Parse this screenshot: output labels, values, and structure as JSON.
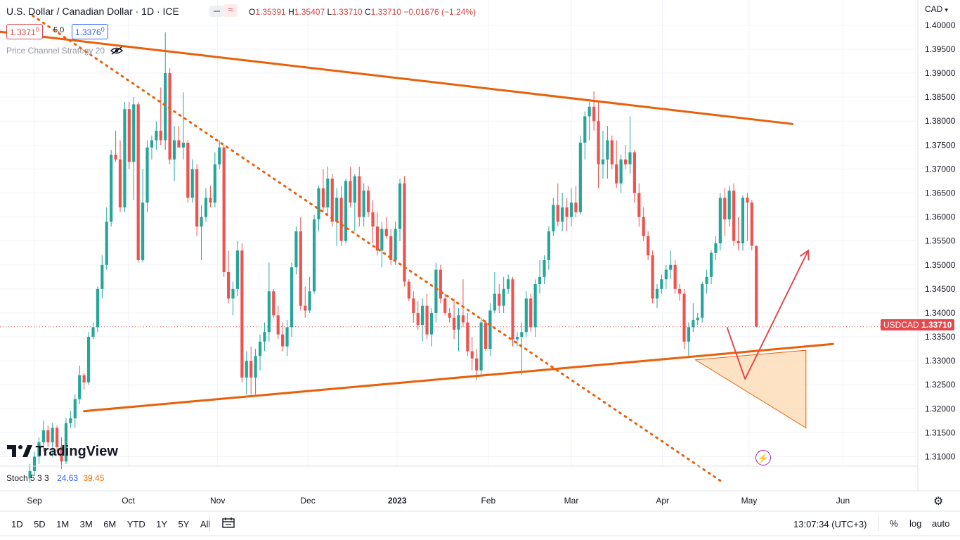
{
  "header": {
    "symbol": "U.S. Dollar / Canadian Dollar · 1D · ICE",
    "ohlc": {
      "open_label": "O",
      "open": "1.35391",
      "high_label": "H",
      "high": "1.35407",
      "low_label": "L",
      "low": "1.33710",
      "close_label": "C",
      "close": "1.33710",
      "change": "−0.01676 (−1.24%)"
    },
    "bid": "1.3371",
    "bid_small": "0",
    "spread": "5.0",
    "ask": "1.3376",
    "ask_small": "0",
    "indicator": "Price Channel Strategy 20",
    "currency": "CAD"
  },
  "price_tag": {
    "symbol": "USDCAD",
    "value": "1.33710"
  },
  "watermark": "TradingView",
  "stoch": {
    "label": "Stoch 5 3 3",
    "k": "24.63",
    "d": "39.45"
  },
  "time_axis": [
    "Sep",
    "Oct",
    "Nov",
    "Dec",
    "2023",
    "Feb",
    "Mar",
    "Apr",
    "May",
    "Jun"
  ],
  "timeframes": [
    "1D",
    "5D",
    "1M",
    "3M",
    "6M",
    "YTD",
    "1Y",
    "5Y",
    "All"
  ],
  "clock": "13:07:34 (UTC+3)",
  "bottom_right": {
    "percent": "%",
    "log": "log",
    "auto": "auto"
  },
  "colors": {
    "up": "#26a69a",
    "down": "#ef5350",
    "trend": "#e8600a",
    "arrow": "#e5484d",
    "fill": "#fcd9b0"
  },
  "chart_data": {
    "type": "candlestick",
    "y_ticks": [
      "1.40000",
      "1.39500",
      "1.39000",
      "1.38500",
      "1.38000",
      "1.37500",
      "1.37000",
      "1.36500",
      "1.36000",
      "1.35500",
      "1.35000",
      "1.34500",
      "1.34000",
      "1.33500",
      "1.33000",
      "1.32500",
      "1.32000",
      "1.31500",
      "1.31000"
    ],
    "ylim": [
      1.3045,
      1.4035
    ],
    "last_price": 1.3371,
    "candles": [
      [
        1.3055,
        1.3085,
        1.3045,
        1.307
      ],
      [
        1.307,
        1.311,
        1.306,
        1.31
      ],
      [
        1.31,
        1.314,
        1.3085,
        1.313
      ],
      [
        1.313,
        1.3175,
        1.311,
        1.3155
      ],
      [
        1.3155,
        1.3165,
        1.312,
        1.313
      ],
      [
        1.313,
        1.317,
        1.31,
        1.316
      ],
      [
        1.316,
        1.3165,
        1.311,
        1.312
      ],
      [
        1.312,
        1.314,
        1.3075,
        1.309
      ],
      [
        1.309,
        1.318,
        1.3085,
        1.317
      ],
      [
        1.317,
        1.3195,
        1.316,
        1.318
      ],
      [
        1.318,
        1.323,
        1.316,
        1.322
      ],
      [
        1.322,
        1.329,
        1.321,
        1.327
      ],
      [
        1.327,
        1.3275,
        1.324,
        1.3255
      ],
      [
        1.3255,
        1.336,
        1.325,
        1.335
      ],
      [
        1.335,
        1.338,
        1.3345,
        1.337
      ],
      [
        1.337,
        1.3455,
        1.336,
        1.345
      ],
      [
        1.345,
        1.352,
        1.343,
        1.35
      ],
      [
        1.35,
        1.362,
        1.349,
        1.359
      ],
      [
        1.359,
        1.374,
        1.358,
        1.373
      ],
      [
        1.373,
        1.378,
        1.3715,
        1.372
      ],
      [
        1.372,
        1.376,
        1.361,
        1.362
      ],
      [
        1.362,
        1.384,
        1.361,
        1.3825
      ],
      [
        1.3825,
        1.384,
        1.37,
        1.3715
      ],
      [
        1.3715,
        1.385,
        1.3635,
        1.3835
      ],
      [
        1.3835,
        1.384,
        1.3505,
        1.351
      ],
      [
        1.351,
        1.37,
        1.3505,
        1.363
      ],
      [
        1.363,
        1.376,
        1.361,
        1.3745
      ],
      [
        1.3745,
        1.377,
        1.372,
        1.376
      ],
      [
        1.376,
        1.38,
        1.374,
        1.378
      ],
      [
        1.378,
        1.387,
        1.375,
        1.376
      ],
      [
        1.376,
        1.3985,
        1.374,
        1.39
      ],
      [
        1.39,
        1.391,
        1.371,
        1.372
      ],
      [
        1.372,
        1.379,
        1.3675,
        1.376
      ],
      [
        1.376,
        1.379,
        1.3745,
        1.3745
      ],
      [
        1.3745,
        1.386,
        1.372,
        1.3755
      ],
      [
        1.3755,
        1.376,
        1.363,
        1.364
      ],
      [
        1.364,
        1.372,
        1.363,
        1.37
      ],
      [
        1.37,
        1.371,
        1.356,
        1.358
      ],
      [
        1.358,
        1.3625,
        1.351,
        1.36
      ],
      [
        1.36,
        1.366,
        1.359,
        1.364
      ],
      [
        1.364,
        1.3665,
        1.362,
        1.363
      ],
      [
        1.363,
        1.3735,
        1.362,
        1.371
      ],
      [
        1.371,
        1.376,
        1.37,
        1.3745
      ],
      [
        1.3745,
        1.375,
        1.3475,
        1.3485
      ],
      [
        1.3485,
        1.353,
        1.342,
        1.343
      ],
      [
        1.343,
        1.3465,
        1.3395,
        1.345
      ],
      [
        1.345,
        1.355,
        1.3435,
        1.353
      ],
      [
        1.353,
        1.3545,
        1.3255,
        1.3265
      ],
      [
        1.3265,
        1.332,
        1.323,
        1.33
      ],
      [
        1.33,
        1.333,
        1.323,
        1.3265
      ],
      [
        1.3265,
        1.3325,
        1.323,
        1.331
      ],
      [
        1.331,
        1.3355,
        1.328,
        1.334
      ],
      [
        1.334,
        1.338,
        1.332,
        1.336
      ],
      [
        1.336,
        1.3505,
        1.334,
        1.3445
      ],
      [
        1.3445,
        1.345,
        1.339,
        1.3395
      ],
      [
        1.3395,
        1.3415,
        1.3345,
        1.3355
      ],
      [
        1.3355,
        1.338,
        1.332,
        1.333
      ],
      [
        1.333,
        1.3385,
        1.331,
        1.337
      ],
      [
        1.337,
        1.3505,
        1.335,
        1.3495
      ],
      [
        1.3495,
        1.358,
        1.348,
        1.357
      ],
      [
        1.357,
        1.36,
        1.3405,
        1.3415
      ],
      [
        1.3415,
        1.3455,
        1.339,
        1.3405
      ],
      [
        1.3405,
        1.3475,
        1.34,
        1.3445
      ],
      [
        1.3445,
        1.3605,
        1.344,
        1.3595
      ],
      [
        1.3595,
        1.3665,
        1.357,
        1.366
      ],
      [
        1.366,
        1.37,
        1.361,
        1.362
      ],
      [
        1.362,
        1.3705,
        1.3605,
        1.368
      ],
      [
        1.368,
        1.369,
        1.358,
        1.359
      ],
      [
        1.359,
        1.366,
        1.354,
        1.364
      ],
      [
        1.364,
        1.3665,
        1.354,
        1.355
      ],
      [
        1.355,
        1.368,
        1.3545,
        1.3675
      ],
      [
        1.3675,
        1.3705,
        1.362,
        1.363
      ],
      [
        1.363,
        1.369,
        1.357,
        1.3685
      ],
      [
        1.3685,
        1.3705,
        1.358,
        1.36
      ],
      [
        1.36,
        1.367,
        1.358,
        1.3655
      ],
      [
        1.3655,
        1.3665,
        1.36,
        1.361
      ],
      [
        1.361,
        1.3635,
        1.3545,
        1.358
      ],
      [
        1.358,
        1.361,
        1.352,
        1.353
      ],
      [
        1.353,
        1.359,
        1.3495,
        1.3575
      ],
      [
        1.3575,
        1.36,
        1.3555,
        1.356
      ],
      [
        1.356,
        1.3575,
        1.35,
        1.351
      ],
      [
        1.351,
        1.359,
        1.35,
        1.3575
      ],
      [
        1.3575,
        1.368,
        1.355,
        1.367
      ],
      [
        1.367,
        1.3685,
        1.3455,
        1.3465
      ],
      [
        1.3465,
        1.347,
        1.3425,
        1.343
      ],
      [
        1.343,
        1.3445,
        1.338,
        1.34
      ],
      [
        1.34,
        1.3425,
        1.3365,
        1.3375
      ],
      [
        1.3375,
        1.343,
        1.334,
        1.3415
      ],
      [
        1.3415,
        1.344,
        1.3345,
        1.3355
      ],
      [
        1.3355,
        1.341,
        1.333,
        1.34
      ],
      [
        1.34,
        1.3505,
        1.338,
        1.349
      ],
      [
        1.349,
        1.35,
        1.342,
        1.343
      ],
      [
        1.343,
        1.344,
        1.3395,
        1.34
      ],
      [
        1.34,
        1.341,
        1.338,
        1.339
      ],
      [
        1.339,
        1.343,
        1.3345,
        1.3365
      ],
      [
        1.3365,
        1.341,
        1.332,
        1.3395
      ],
      [
        1.3395,
        1.347,
        1.337,
        1.338
      ],
      [
        1.338,
        1.34,
        1.331,
        1.332
      ],
      [
        1.332,
        1.335,
        1.328,
        1.3305
      ],
      [
        1.3305,
        1.3325,
        1.326,
        1.328
      ],
      [
        1.328,
        1.339,
        1.327,
        1.338
      ],
      [
        1.338,
        1.3385,
        1.332,
        1.3325
      ],
      [
        1.3325,
        1.342,
        1.331,
        1.3405
      ],
      [
        1.3405,
        1.3485,
        1.34,
        1.344
      ],
      [
        1.344,
        1.346,
        1.34,
        1.3415
      ],
      [
        1.3415,
        1.3475,
        1.34,
        1.345
      ],
      [
        1.345,
        1.348,
        1.344,
        1.347
      ],
      [
        1.347,
        1.3475,
        1.333,
        1.3345
      ],
      [
        1.3345,
        1.336,
        1.333,
        1.335
      ],
      [
        1.335,
        1.338,
        1.327,
        1.336
      ],
      [
        1.336,
        1.3445,
        1.335,
        1.343
      ],
      [
        1.343,
        1.344,
        1.336,
        1.337
      ],
      [
        1.337,
        1.347,
        1.335,
        1.346
      ],
      [
        1.346,
        1.351,
        1.344,
        1.3475
      ],
      [
        1.3475,
        1.352,
        1.346,
        1.351
      ],
      [
        1.351,
        1.358,
        1.349,
        1.357
      ],
      [
        1.357,
        1.364,
        1.356,
        1.3625
      ],
      [
        1.3625,
        1.367,
        1.358,
        1.359
      ],
      [
        1.359,
        1.365,
        1.357,
        1.362
      ],
      [
        1.362,
        1.364,
        1.357,
        1.36
      ],
      [
        1.36,
        1.366,
        1.358,
        1.363
      ],
      [
        1.363,
        1.3665,
        1.36,
        1.361
      ],
      [
        1.361,
        1.377,
        1.3605,
        1.3755
      ],
      [
        1.3755,
        1.382,
        1.372,
        1.381
      ],
      [
        1.381,
        1.384,
        1.376,
        1.383
      ],
      [
        1.383,
        1.3862,
        1.378,
        1.38
      ],
      [
        1.38,
        1.384,
        1.366,
        1.371
      ],
      [
        1.371,
        1.378,
        1.368,
        1.372
      ],
      [
        1.372,
        1.379,
        1.368,
        1.376
      ],
      [
        1.376,
        1.377,
        1.37,
        1.371
      ],
      [
        1.371,
        1.376,
        1.366,
        1.367
      ],
      [
        1.367,
        1.373,
        1.365,
        1.372
      ],
      [
        1.372,
        1.375,
        1.37,
        1.371
      ],
      [
        1.371,
        1.381,
        1.369,
        1.3735
      ],
      [
        1.3735,
        1.374,
        1.363,
        1.365
      ],
      [
        1.365,
        1.367,
        1.358,
        1.36
      ],
      [
        1.36,
        1.362,
        1.355,
        1.356
      ],
      [
        1.356,
        1.357,
        1.351,
        1.352
      ],
      [
        1.352,
        1.353,
        1.342,
        1.343
      ],
      [
        1.343,
        1.346,
        1.341,
        1.345
      ],
      [
        1.345,
        1.348,
        1.344,
        1.347
      ],
      [
        1.347,
        1.35,
        1.345,
        1.349
      ],
      [
        1.349,
        1.353,
        1.347,
        1.35
      ],
      [
        1.35,
        1.351,
        1.344,
        1.345
      ],
      [
        1.345,
        1.346,
        1.3425,
        1.344
      ],
      [
        1.344,
        1.345,
        1.3325,
        1.334
      ],
      [
        1.334,
        1.338,
        1.331,
        1.337
      ],
      [
        1.337,
        1.342,
        1.336,
        1.3385
      ],
      [
        1.3385,
        1.34,
        1.3375,
        1.339
      ],
      [
        1.339,
        1.3465,
        1.338,
        1.346
      ],
      [
        1.346,
        1.349,
        1.344,
        1.3475
      ],
      [
        1.3475,
        1.353,
        1.346,
        1.3525
      ],
      [
        1.3525,
        1.356,
        1.351,
        1.3545
      ],
      [
        1.3545,
        1.365,
        1.353,
        1.364
      ],
      [
        1.364,
        1.366,
        1.356,
        1.3595
      ],
      [
        1.3595,
        1.3665,
        1.358,
        1.3655
      ],
      [
        1.3655,
        1.367,
        1.354,
        1.355
      ],
      [
        1.355,
        1.36,
        1.353,
        1.3545
      ],
      [
        1.3545,
        1.3645,
        1.353,
        1.364
      ],
      [
        1.364,
        1.365,
        1.355,
        1.363
      ],
      [
        1.363,
        1.3635,
        1.353,
        1.354
      ],
      [
        1.3539,
        1.3541,
        1.3371,
        1.3371
      ]
    ],
    "trendlines": [
      {
        "from_day": 0.6,
        "from_price": 1.402,
        "to_day": 153,
        "to_price": 1.305,
        "style": "dotted"
      },
      {
        "from_day": -10,
        "from_price": 1.399,
        "to_day": 169,
        "to_price": 1.3794,
        "style": "solid"
      },
      {
        "from_day": 12,
        "from_price": 1.3195,
        "to_day": 178,
        "to_price": 1.3335,
        "style": "solid"
      }
    ],
    "projection_path": [
      [
        154.5,
        1.337
      ],
      [
        158.5,
        1.3262
      ],
      [
        172.5,
        1.353
      ]
    ],
    "projection_zone": [
      [
        147.5,
        1.3302
      ],
      [
        172,
        1.3322
      ],
      [
        172,
        1.316
      ]
    ]
  }
}
